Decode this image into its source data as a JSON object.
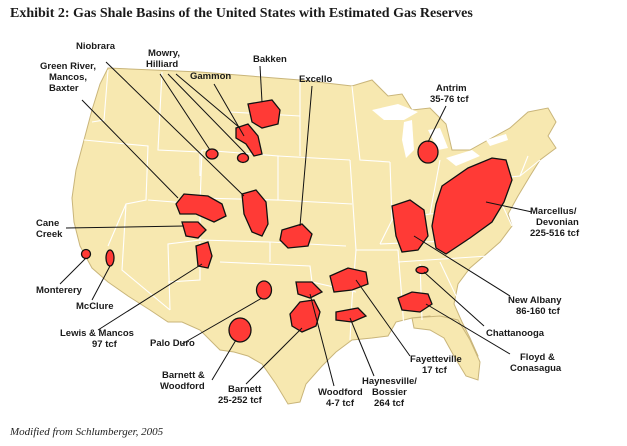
{
  "title": "Exhibit 2: Gas Shale Basins of the United States with Estimated Gas Reserves",
  "credit": "Modified from Schlumberger, 2005",
  "colors": {
    "land": "#f7e8b0",
    "basin": "#ff3a36",
    "border": "#ffffff",
    "outline": "#111111"
  },
  "labels": {
    "niobrara": "Niobrara",
    "green_river": [
      "Green River,",
      "Mancos,",
      "Baxter"
    ],
    "mowry": [
      "Mowry,",
      "Hilliard"
    ],
    "gammon": "Gammon",
    "bakken": "Bakken",
    "excello": "Excello",
    "antrim": [
      "Antrim",
      "35-76 tcf"
    ],
    "cane_creek": [
      "Cane",
      "Creek"
    ],
    "marcellus": [
      "Marcellus/",
      "Devonian",
      "225-516 tcf"
    ],
    "monterery": "Monterery",
    "mcclure": "McClure",
    "new_albany": [
      "New Albany",
      "86-160 tcf"
    ],
    "lewis": [
      "Lewis & Mancos",
      "97 tcf"
    ],
    "palo_duro": "Palo Duro",
    "chattanooga": "Chattanooga",
    "floyd": [
      "Floyd &",
      "Conasagua"
    ],
    "fayetteville": [
      "Fayetteville",
      "17 tcf"
    ],
    "barnett_woodford": [
      "Barnett &",
      "Woodford"
    ],
    "barnett": [
      "Barnett",
      "25-252 tcf"
    ],
    "haynesville": [
      "Haynesville/",
      "Bossier",
      "264 tcf"
    ],
    "woodford": [
      "Woodford",
      "4-7 tcf"
    ]
  }
}
